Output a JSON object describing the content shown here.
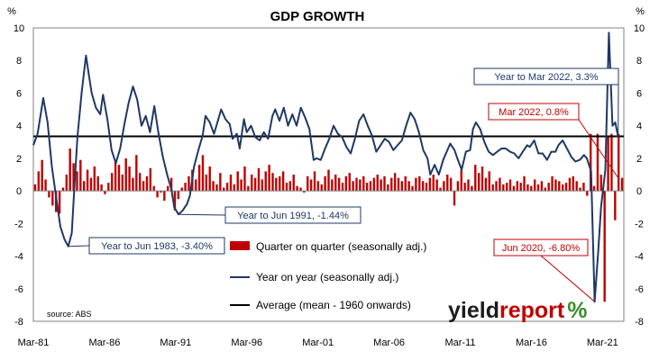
{
  "chart_data": {
    "type": "bar",
    "title": "GDP GROWTH",
    "y_unit_left": "%",
    "y_unit_right": "%",
    "ylim": [
      -8,
      10
    ],
    "yticks": [
      "-8",
      "-6",
      "-4",
      "-2",
      "0",
      "2",
      "4",
      "6",
      "8",
      "10"
    ],
    "xlim": [
      1981.0,
      2022.5
    ],
    "x_tick_labels": [
      "Mar-81",
      "Mar-86",
      "Mar-91",
      "Mar-96",
      "Mar-01",
      "Mar-06",
      "Mar-11",
      "Mar-16",
      "Mar-21"
    ],
    "grid": false,
    "legend_position": "bottom-center, inside plot",
    "series": [
      {
        "name": "Quarter on quarter (seasonally adj.)",
        "type": "bar",
        "color": "#c00000",
        "values": [
          0.4,
          1.2,
          1.9,
          0.7,
          -0.4,
          -0.9,
          -1.3,
          -1.4,
          0.2,
          1.0,
          2.6,
          1.7,
          1.2,
          1.9,
          0.6,
          1.3,
          0.8,
          1.5,
          0.9,
          0.4,
          -0.2,
          0.5,
          1.1,
          1.8,
          1.6,
          1.0,
          2.0,
          1.5,
          0.8,
          2.2,
          1.1,
          0.6,
          0.9,
          1.4,
          0.3,
          -0.4,
          -0.1,
          -0.6,
          0.3,
          0.8,
          -1.2,
          -0.5,
          0.2,
          0.5,
          0.9,
          1.3,
          0.7,
          1.6,
          2.2,
          1.0,
          1.5,
          0.6,
          0.4,
          1.1,
          0.2,
          0.5,
          1.0,
          0.4,
          1.2,
          0.7,
          1.5,
          0.3,
          1.0,
          0.8,
          1.4,
          0.7,
          1.2,
          1.6,
          1.1,
          0.8,
          0.9,
          1.2,
          0.5,
          0.6,
          1.0,
          0.3,
          0.2,
          -0.1,
          0.9,
          0.7,
          1.2,
          0.6,
          0.4,
          0.9,
          1.3,
          0.7,
          1.0,
          0.8,
          0.5,
          0.9,
          1.1,
          0.6,
          0.8,
          0.7,
          0.9,
          0.5,
          0.6,
          0.8,
          1.0,
          0.7,
          0.9,
          0.4,
          0.8,
          1.1,
          0.8,
          0.6,
          0.9,
          0.6,
          0.3,
          0.8,
          0.9,
          0.6,
          0.5,
          0.8,
          1.0,
          0.7,
          0.2,
          0.6,
          1.0,
          0.8,
          -0.9,
          0.6,
          1.3,
          0.5,
          0.7,
          0.3,
          1.6,
          1.1,
          1.5,
          0.8,
          1.2,
          0.4,
          0.6,
          0.8,
          0.4,
          0.5,
          0.7,
          0.3,
          0.6,
          0.5,
          0.9,
          0.4,
          0.3,
          0.7,
          0.4,
          0.6,
          0.2,
          0.5,
          0.9,
          0.7,
          0.6,
          0.4,
          0.5,
          0.8,
          0.9,
          0.6,
          0.2,
          0.5,
          -0.3,
          3.5,
          0.3,
          3.5,
          1.0,
          -6.8,
          3.4,
          3.5,
          -1.8,
          3.5,
          0.8
        ]
      },
      {
        "name": "Year on year (seasonally adj.)",
        "type": "line",
        "color": "#1f3864",
        "points": [
          [
            1981.0,
            2.8
          ],
          [
            1981.3,
            3.5
          ],
          [
            1981.7,
            5.7
          ],
          [
            1982.0,
            4.2
          ],
          [
            1982.3,
            1.5
          ],
          [
            1982.6,
            -0.4
          ],
          [
            1982.9,
            -2.2
          ],
          [
            1983.2,
            -3.0
          ],
          [
            1983.45,
            -3.4
          ],
          [
            1983.7,
            -2.6
          ],
          [
            1983.9,
            0.5
          ],
          [
            1984.1,
            3.3
          ],
          [
            1984.4,
            6.1
          ],
          [
            1984.7,
            8.3
          ],
          [
            1984.9,
            7.1
          ],
          [
            1985.1,
            6.0
          ],
          [
            1985.4,
            5.1
          ],
          [
            1985.7,
            4.7
          ],
          [
            1985.9,
            5.9
          ],
          [
            1986.2,
            4.4
          ],
          [
            1986.5,
            2.5
          ],
          [
            1986.8,
            1.7
          ],
          [
            1987.1,
            2.6
          ],
          [
            1987.4,
            4.1
          ],
          [
            1987.7,
            5.4
          ],
          [
            1988.0,
            6.4
          ],
          [
            1988.3,
            5.6
          ],
          [
            1988.6,
            4.0
          ],
          [
            1988.9,
            4.6
          ],
          [
            1989.2,
            3.6
          ],
          [
            1989.5,
            5.2
          ],
          [
            1989.8,
            3.5
          ],
          [
            1990.1,
            2.1
          ],
          [
            1990.4,
            1.0
          ],
          [
            1990.7,
            0.1
          ],
          [
            1990.9,
            -1.0
          ],
          [
            1991.2,
            -1.44
          ],
          [
            1991.5,
            -1.2
          ],
          [
            1991.8,
            -0.8
          ],
          [
            1992.0,
            -0.3
          ],
          [
            1992.3,
            1.5
          ],
          [
            1992.6,
            2.5
          ],
          [
            1992.9,
            3.4
          ],
          [
            1993.1,
            4.6
          ],
          [
            1993.4,
            4.2
          ],
          [
            1993.7,
            3.5
          ],
          [
            1993.9,
            4.1
          ],
          [
            1994.2,
            5.0
          ],
          [
            1994.5,
            4.4
          ],
          [
            1994.8,
            4.1
          ],
          [
            1995.0,
            3.2
          ],
          [
            1995.3,
            3.5
          ],
          [
            1995.5,
            2.6
          ],
          [
            1995.8,
            4.4
          ],
          [
            1996.0,
            3.6
          ],
          [
            1996.3,
            4.0
          ],
          [
            1996.6,
            3.3
          ],
          [
            1996.9,
            3.1
          ],
          [
            1997.2,
            3.6
          ],
          [
            1997.5,
            3.2
          ],
          [
            1997.8,
            4.6
          ],
          [
            1998.0,
            5.0
          ],
          [
            1998.3,
            4.3
          ],
          [
            1998.6,
            5.1
          ],
          [
            1998.9,
            4.0
          ],
          [
            1999.2,
            4.7
          ],
          [
            1999.5,
            4.0
          ],
          [
            1999.8,
            5.1
          ],
          [
            2000.1,
            4.5
          ],
          [
            2000.4,
            3.8
          ],
          [
            2000.7,
            1.9
          ],
          [
            2000.9,
            2.0
          ],
          [
            2001.2,
            1.9
          ],
          [
            2001.5,
            2.6
          ],
          [
            2001.8,
            3.2
          ],
          [
            2002.1,
            4.0
          ],
          [
            2002.4,
            3.5
          ],
          [
            2002.7,
            3.3
          ],
          [
            2003.0,
            2.7
          ],
          [
            2003.3,
            2.3
          ],
          [
            2003.6,
            3.2
          ],
          [
            2003.9,
            4.3
          ],
          [
            2004.2,
            4.7
          ],
          [
            2004.5,
            4.0
          ],
          [
            2004.8,
            3.4
          ],
          [
            2005.1,
            2.4
          ],
          [
            2005.4,
            2.8
          ],
          [
            2005.7,
            3.2
          ],
          [
            2006.0,
            3.0
          ],
          [
            2006.3,
            2.5
          ],
          [
            2006.6,
            2.8
          ],
          [
            2006.9,
            3.1
          ],
          [
            2007.2,
            4.0
          ],
          [
            2007.5,
            4.8
          ],
          [
            2007.8,
            4.4
          ],
          [
            2008.1,
            3.6
          ],
          [
            2008.4,
            2.5
          ],
          [
            2008.7,
            2.0
          ],
          [
            2008.9,
            1.0
          ],
          [
            2009.2,
            1.6
          ],
          [
            2009.5,
            1.0
          ],
          [
            2009.8,
            1.9
          ],
          [
            2010.0,
            2.3
          ],
          [
            2010.3,
            2.9
          ],
          [
            2010.6,
            2.5
          ],
          [
            2010.8,
            2.0
          ],
          [
            2011.1,
            1.3
          ],
          [
            2011.4,
            2.4
          ],
          [
            2011.7,
            2.5
          ],
          [
            2011.9,
            3.8
          ],
          [
            2012.1,
            4.2
          ],
          [
            2012.4,
            3.8
          ],
          [
            2012.7,
            3.0
          ],
          [
            2013.0,
            2.4
          ],
          [
            2013.3,
            2.2
          ],
          [
            2013.6,
            2.4
          ],
          [
            2013.9,
            2.6
          ],
          [
            2014.2,
            2.6
          ],
          [
            2014.5,
            2.4
          ],
          [
            2014.8,
            2.3
          ],
          [
            2015.1,
            2.0
          ],
          [
            2015.4,
            2.4
          ],
          [
            2015.7,
            2.8
          ],
          [
            2015.9,
            2.7
          ],
          [
            2016.2,
            3.1
          ],
          [
            2016.5,
            2.3
          ],
          [
            2016.8,
            2.3
          ],
          [
            2017.1,
            1.9
          ],
          [
            2017.4,
            2.4
          ],
          [
            2017.7,
            2.4
          ],
          [
            2017.9,
            2.8
          ],
          [
            2018.2,
            3.1
          ],
          [
            2018.5,
            2.6
          ],
          [
            2018.8,
            2.1
          ],
          [
            2019.1,
            1.8
          ],
          [
            2019.4,
            1.9
          ],
          [
            2019.7,
            2.2
          ],
          [
            2019.9,
            2.0
          ],
          [
            2020.2,
            1.2
          ],
          [
            2020.45,
            -6.8
          ],
          [
            2020.7,
            -3.7
          ],
          [
            2020.9,
            -1.0
          ],
          [
            2021.2,
            1.3
          ],
          [
            2021.45,
            9.7
          ],
          [
            2021.7,
            4.0
          ],
          [
            2021.9,
            4.2
          ],
          [
            2022.1,
            3.3
          ]
        ]
      },
      {
        "name": "Average (mean - 1960 onwards)",
        "type": "line",
        "color": "#000000",
        "value": 3.35
      }
    ],
    "annotations": [
      {
        "text": "Year to Mar 2022, 3.3%",
        "color": "#1f3864",
        "x": 2022.1,
        "y": 3.3
      },
      {
        "text": "Mar 2022, 0.8%",
        "color": "#c00000",
        "x": 2022.1,
        "y": 0.8
      },
      {
        "text": "Year to Jun 1991, -1.44%",
        "color": "#1f3864",
        "x": 1991.2,
        "y": -1.44
      },
      {
        "text": "Year to Jun 1983, -3.40%",
        "color": "#1f3864",
        "x": 1983.45,
        "y": -3.4
      },
      {
        "text": "Jun 2020, -6.80%",
        "color": "#c00000",
        "x": 2020.45,
        "y": -6.8
      }
    ],
    "source": "source: ABS"
  },
  "brand": {
    "name_part1": "yield",
    "name_part2": "report",
    "symbol": "%",
    "colors": {
      "dark": "#1c1c1c",
      "accent": "#c00000",
      "highlight": "#3a8f2a"
    }
  }
}
